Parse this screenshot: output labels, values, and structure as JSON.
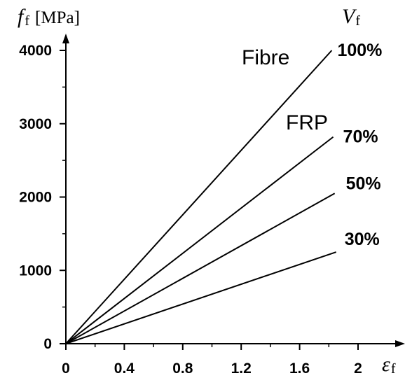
{
  "chart_data": {
    "type": "line",
    "title": "",
    "ylabel": {
      "symbol": "f",
      "subscript": "f",
      "unit": "[MPa]"
    },
    "xlabel": {
      "symbol": "ε",
      "subscript": "f"
    },
    "legend_title": {
      "symbol": "V",
      "subscript": "f"
    },
    "xlim": [
      0,
      2.1
    ],
    "ylim": [
      0,
      4200
    ],
    "x_ticks": [
      0,
      0.4,
      0.8,
      1.2,
      1.6,
      2
    ],
    "x_tick_labels": [
      "0",
      "0.4",
      "0.8",
      "1.2",
      "1.6",
      "2"
    ],
    "y_ticks": [
      0,
      1000,
      2000,
      3000,
      4000
    ],
    "y_tick_labels": [
      "0",
      "1000",
      "2000",
      "3000",
      "4000"
    ],
    "grid": false,
    "series": [
      {
        "name": "100%",
        "x": [
          0,
          1.82
        ],
        "y": [
          0,
          4000
        ]
      },
      {
        "name": "70%",
        "x": [
          0,
          1.83
        ],
        "y": [
          0,
          2820
        ]
      },
      {
        "name": "50%",
        "x": [
          0,
          1.84
        ],
        "y": [
          0,
          2050
        ]
      },
      {
        "name": "30%",
        "x": [
          0,
          1.85
        ],
        "y": [
          0,
          1250
        ]
      }
    ],
    "annotations": [
      {
        "text": "Fibre",
        "near_series": "100%"
      },
      {
        "text": "FRP",
        "near_series": "70%"
      }
    ]
  }
}
